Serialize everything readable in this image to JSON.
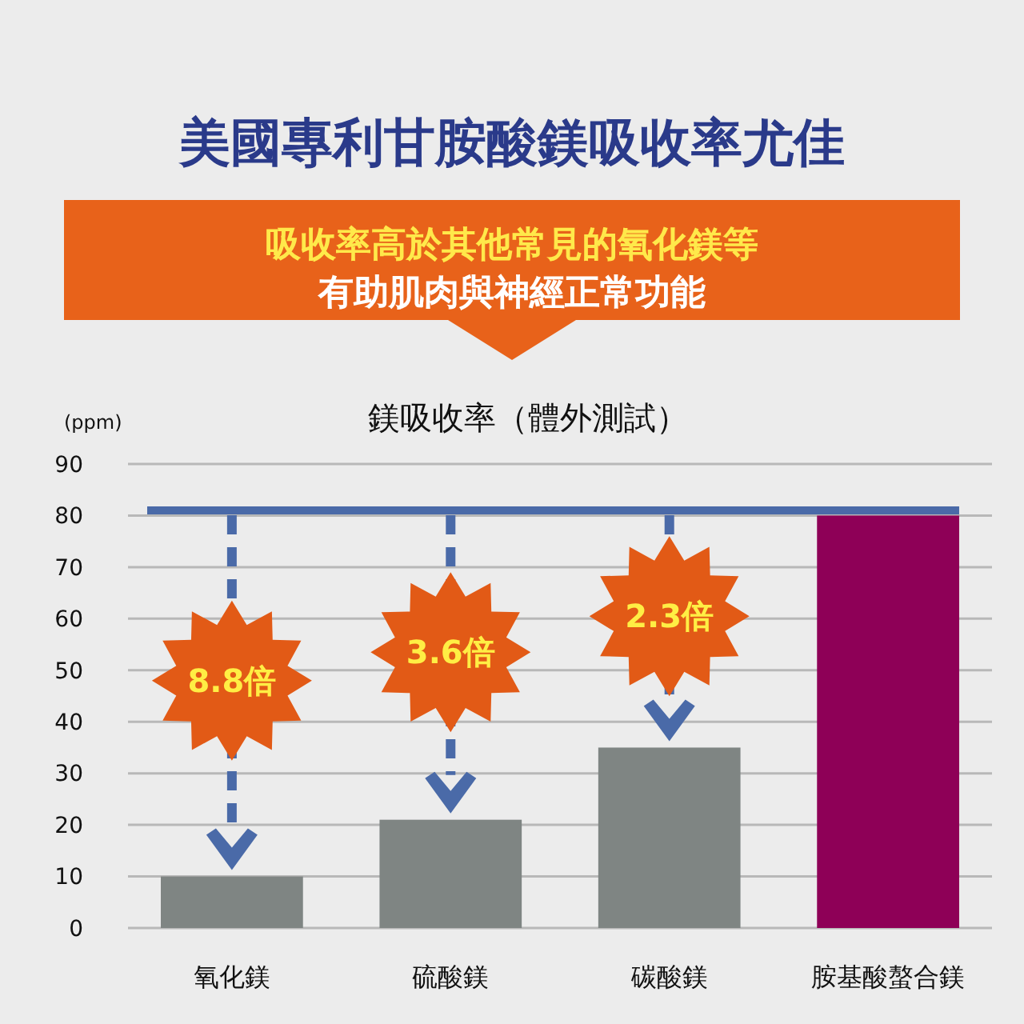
{
  "chart_data": {
    "type": "bar",
    "title": "美國專利甘胺酸鎂吸收率尤佳",
    "subtitle": "吸收率高於其他常見的氧化鎂等有助肌肉與神經正常功能",
    "ylabel": "(ppm)",
    "categories": [
      "氧化鎂",
      "硫酸鎂",
      "碳酸鎂",
      "胺基酸螯合鎂"
    ],
    "values": [
      10,
      21,
      35,
      80
    ],
    "colors": [
      "#7f8583",
      "#7f8583",
      "#7f8583",
      "#8e0057"
    ],
    "ylim": [
      0,
      90
    ],
    "yticks": [
      0,
      10,
      20,
      30,
      40,
      50,
      60,
      70,
      80,
      90
    ],
    "grid": "y",
    "ref_lines": [
      {
        "axis": "y",
        "value": 81,
        "color": "#4a6aa8"
      }
    ],
    "annotations": [
      "鎂吸收率（體外測試）",
      "8.8倍",
      "3.6倍",
      "2.3倍"
    ]
  }
}
